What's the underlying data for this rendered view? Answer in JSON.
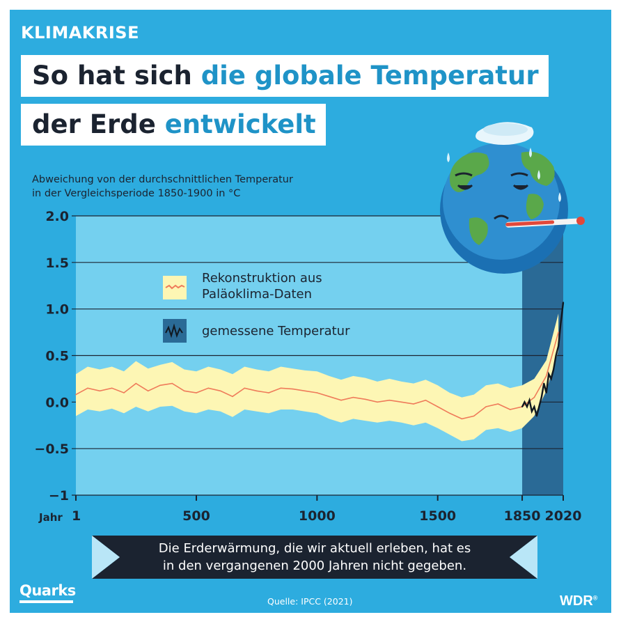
{
  "header": {
    "kicker": "KLIMAKRISE",
    "title_line1_plain": "So hat sich ",
    "title_line1_accent": "die globale Temperatur",
    "title_line2_plain": "der Erde ",
    "title_line2_accent": "entwickelt"
  },
  "footer": {
    "message_line1": "Die Erderwärmung, die wir aktuell erleben, hat es",
    "message_line2": "in den vergangenen 2000 Jahren nicht gegeben.",
    "source": "Quelle:  IPCC (2021)",
    "brand_left": "Quarks",
    "brand_right": "WDR"
  },
  "colors": {
    "background": "#2dacdf",
    "plot_area": "#74d0ef",
    "highlight_period": "#2a6a96",
    "band": "#fdf6b4",
    "reconstruction_line": "#ef7b5a",
    "measured_line": "#101820",
    "banner": "#1b2330",
    "banner_tips": "#b9e6f7"
  },
  "chart_data": {
    "type": "line",
    "ylabel_line1": "Abweichung von der durchschnittlichen Temperatur",
    "ylabel_line2": "in der Vergleichsperiode 1850-1900 in °C",
    "xlabel": "Jahr",
    "xlim": [
      1,
      2020
    ],
    "ylim": [
      -1,
      2
    ],
    "x_ticks": [
      1,
      500,
      1000,
      1500,
      1850,
      2020
    ],
    "x_tick_labels": [
      "1",
      "500",
      "1000",
      "1500",
      "1850",
      "2020"
    ],
    "y_ticks": [
      2,
      1.5,
      1,
      0.5,
      0,
      -0.5,
      -1
    ],
    "y_tick_labels": [
      "2.0",
      "1.5",
      "1.0",
      "0.5",
      "0.0",
      "−0.5",
      "−1"
    ],
    "grid": true,
    "highlight_range": [
      1850,
      2020
    ],
    "legend": [
      {
        "label_line1": "Rekonstruktion aus",
        "label_line2": "Paläoklima-Daten",
        "symbol": "band"
      },
      {
        "label_line1": "gemessene Temperatur",
        "label_line2": "",
        "symbol": "line"
      }
    ],
    "series": [
      {
        "name": "Rekonstruktion aus Paläoklima-Daten",
        "kind": "band",
        "x": [
          1,
          50,
          100,
          150,
          200,
          250,
          300,
          350,
          400,
          450,
          500,
          550,
          600,
          650,
          700,
          750,
          800,
          850,
          900,
          950,
          1000,
          1050,
          1100,
          1150,
          1200,
          1250,
          1300,
          1350,
          1400,
          1450,
          1500,
          1550,
          1600,
          1650,
          1700,
          1750,
          1800,
          1850,
          1900,
          1950,
          2000
        ],
        "y": [
          0.08,
          0.15,
          0.12,
          0.15,
          0.1,
          0.2,
          0.12,
          0.18,
          0.2,
          0.12,
          0.1,
          0.15,
          0.12,
          0.06,
          0.15,
          0.12,
          0.1,
          0.15,
          0.14,
          0.12,
          0.1,
          0.06,
          0.02,
          0.05,
          0.03,
          0.0,
          0.02,
          0.0,
          -0.02,
          0.02,
          -0.05,
          -0.12,
          -0.18,
          -0.15,
          -0.05,
          -0.02,
          -0.08,
          -0.05,
          0.05,
          0.28,
          0.75
        ],
        "y_low": [
          -0.15,
          -0.08,
          -0.1,
          -0.07,
          -0.12,
          -0.05,
          -0.1,
          -0.05,
          -0.04,
          -0.1,
          -0.12,
          -0.08,
          -0.1,
          -0.16,
          -0.08,
          -0.1,
          -0.12,
          -0.08,
          -0.08,
          -0.1,
          -0.12,
          -0.18,
          -0.22,
          -0.18,
          -0.2,
          -0.22,
          -0.2,
          -0.22,
          -0.25,
          -0.22,
          -0.28,
          -0.35,
          -0.42,
          -0.4,
          -0.3,
          -0.28,
          -0.32,
          -0.28,
          -0.15,
          0.12,
          0.55
        ],
        "y_high": [
          0.3,
          0.38,
          0.35,
          0.38,
          0.33,
          0.44,
          0.36,
          0.4,
          0.43,
          0.35,
          0.33,
          0.38,
          0.35,
          0.3,
          0.38,
          0.35,
          0.33,
          0.38,
          0.36,
          0.34,
          0.33,
          0.28,
          0.24,
          0.28,
          0.26,
          0.22,
          0.25,
          0.22,
          0.2,
          0.24,
          0.18,
          0.1,
          0.05,
          0.08,
          0.18,
          0.2,
          0.15,
          0.18,
          0.25,
          0.45,
          0.95
        ]
      },
      {
        "name": "gemessene Temperatur",
        "kind": "line",
        "x": [
          1850,
          1860,
          1870,
          1880,
          1890,
          1900,
          1910,
          1920,
          1930,
          1940,
          1950,
          1960,
          1970,
          1980,
          1990,
          2000,
          2010,
          2020
        ],
        "y": [
          -0.05,
          0.0,
          -0.05,
          0.02,
          -0.1,
          -0.05,
          -0.15,
          -0.05,
          0.05,
          0.2,
          0.1,
          0.3,
          0.25,
          0.35,
          0.5,
          0.6,
          0.85,
          1.07
        ]
      }
    ]
  }
}
